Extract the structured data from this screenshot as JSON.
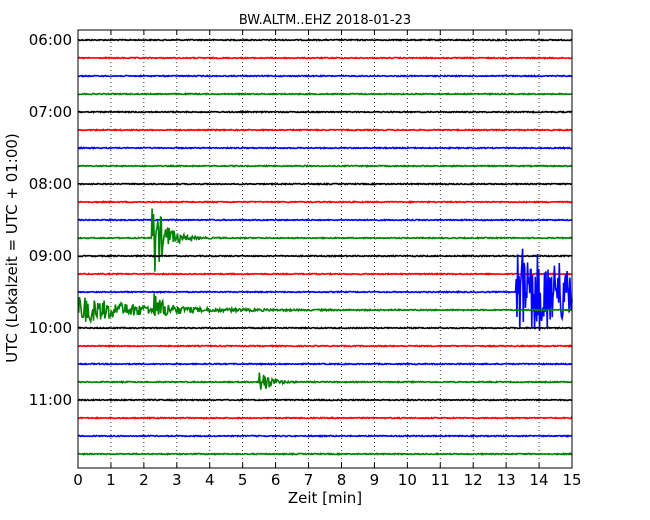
{
  "chart_data": {
    "type": "line",
    "title": "BW.ALTM..EHZ 2018-01-23",
    "xlabel": "Zeit  [min]",
    "ylabel": "UTC (Lokalzeit = UTC + 01:00)",
    "xlim": [
      0,
      15
    ],
    "x_ticks": [
      "0",
      "1",
      "2",
      "3",
      "4",
      "5",
      "6",
      "7",
      "8",
      "9",
      "10",
      "11",
      "12",
      "13",
      "14",
      "15"
    ],
    "y_ticks": [
      "06:00",
      "07:00",
      "08:00",
      "09:00",
      "10:00",
      "11:00"
    ],
    "rows_per_hour": 4,
    "row_minutes": 15,
    "first_row_time": "06:00",
    "row_colors": [
      "#000000",
      "#ff0000",
      "#0000ff",
      "#008000"
    ],
    "grid": true,
    "series": [
      {
        "row_time": "06:00",
        "color": "#000000",
        "amplitude": 0.06,
        "events": []
      },
      {
        "row_time": "06:15",
        "color": "#ff0000",
        "amplitude": 0.06,
        "events": []
      },
      {
        "row_time": "06:30",
        "color": "#0000ff",
        "amplitude": 0.06,
        "events": []
      },
      {
        "row_time": "06:45",
        "color": "#008000",
        "amplitude": 0.06,
        "events": []
      },
      {
        "row_time": "07:00",
        "color": "#000000",
        "amplitude": 0.06,
        "events": []
      },
      {
        "row_time": "07:15",
        "color": "#ff0000",
        "amplitude": 0.06,
        "events": []
      },
      {
        "row_time": "07:30",
        "color": "#0000ff",
        "amplitude": 0.06,
        "events": []
      },
      {
        "row_time": "07:45",
        "color": "#008000",
        "amplitude": 0.06,
        "events": []
      },
      {
        "row_time": "08:00",
        "color": "#000000",
        "amplitude": 0.06,
        "events": []
      },
      {
        "row_time": "08:15",
        "color": "#ff0000",
        "amplitude": 0.06,
        "events": []
      },
      {
        "row_time": "08:30",
        "color": "#0000ff",
        "amplitude": 0.06,
        "events": []
      },
      {
        "row_time": "08:45",
        "color": "#008000",
        "amplitude": 0.06,
        "events": [
          {
            "start_min": 2.25,
            "peak": 5.0,
            "decay_min": 0.35
          }
        ]
      },
      {
        "row_time": "09:00",
        "color": "#000000",
        "amplitude": 0.06,
        "events": []
      },
      {
        "row_time": "09:15",
        "color": "#ff0000",
        "amplitude": 0.06,
        "events": []
      },
      {
        "row_time": "09:30",
        "color": "#0000ff",
        "amplitude": 0.06,
        "events": [
          {
            "start_min": 13.3,
            "peak": 5.5,
            "decay_min": 3.0
          }
        ]
      },
      {
        "row_time": "09:45",
        "color": "#008000",
        "amplitude": 0.06,
        "events": [
          {
            "start_min": 0.0,
            "peak": 1.6,
            "decay_min": 1.8
          },
          {
            "start_min": 2.3,
            "peak": 1.5,
            "decay_min": 0.3
          }
        ]
      },
      {
        "row_time": "10:00",
        "color": "#000000",
        "amplitude": 0.06,
        "events": []
      },
      {
        "row_time": "10:15",
        "color": "#ff0000",
        "amplitude": 0.06,
        "events": []
      },
      {
        "row_time": "10:30",
        "color": "#0000ff",
        "amplitude": 0.06,
        "events": []
      },
      {
        "row_time": "10:45",
        "color": "#008000",
        "amplitude": 0.06,
        "events": [
          {
            "start_min": 5.5,
            "peak": 2.0,
            "decay_min": 0.25
          }
        ]
      },
      {
        "row_time": "11:00",
        "color": "#000000",
        "amplitude": 0.06,
        "events": []
      },
      {
        "row_time": "11:15",
        "color": "#ff0000",
        "amplitude": 0.06,
        "events": []
      },
      {
        "row_time": "11:30",
        "color": "#0000ff",
        "amplitude": 0.06,
        "events": []
      },
      {
        "row_time": "11:45",
        "color": "#008000",
        "amplitude": 0.06,
        "events": []
      }
    ]
  }
}
